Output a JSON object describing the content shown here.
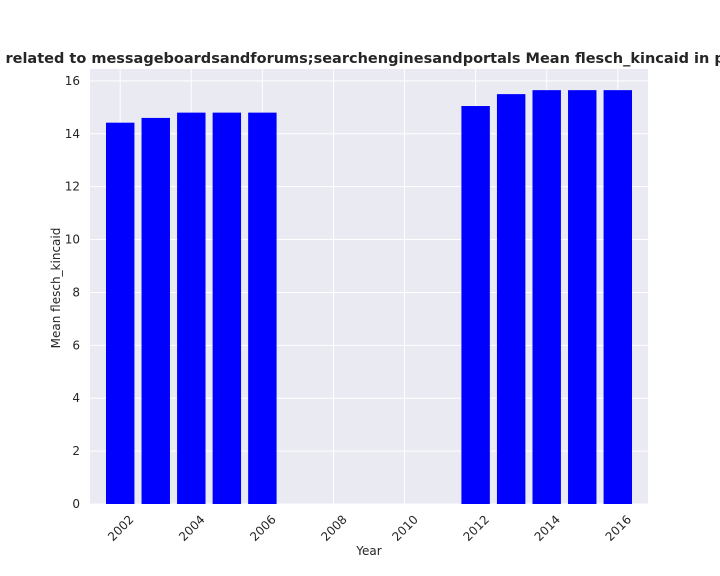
{
  "chart_data": {
    "type": "bar",
    "title": "are related to messageboardsandforums;searchenginesandportals Mean flesch_kincaid in priv",
    "xlabel": "Year",
    "ylabel": "Mean flesch_kincaid",
    "x": [
      2002,
      2003,
      2004,
      2005,
      2006,
      2012,
      2013,
      2014,
      2015,
      2016
    ],
    "values": [
      14.42,
      14.6,
      14.8,
      14.8,
      14.8,
      15.05,
      15.5,
      15.65,
      15.65,
      15.65
    ],
    "xlim": [
      2001.15,
      2016.85
    ],
    "ylim": [
      0,
      16.45
    ],
    "xticks": [
      2002,
      2004,
      2006,
      2008,
      2010,
      2012,
      2014,
      2016
    ],
    "yticks": [
      0,
      2,
      4,
      6,
      8,
      10,
      12,
      14,
      16
    ],
    "grid": true,
    "bar_color": "#0000ff",
    "background_color": "#eaeaf2",
    "grid_color": "#ffffff"
  }
}
